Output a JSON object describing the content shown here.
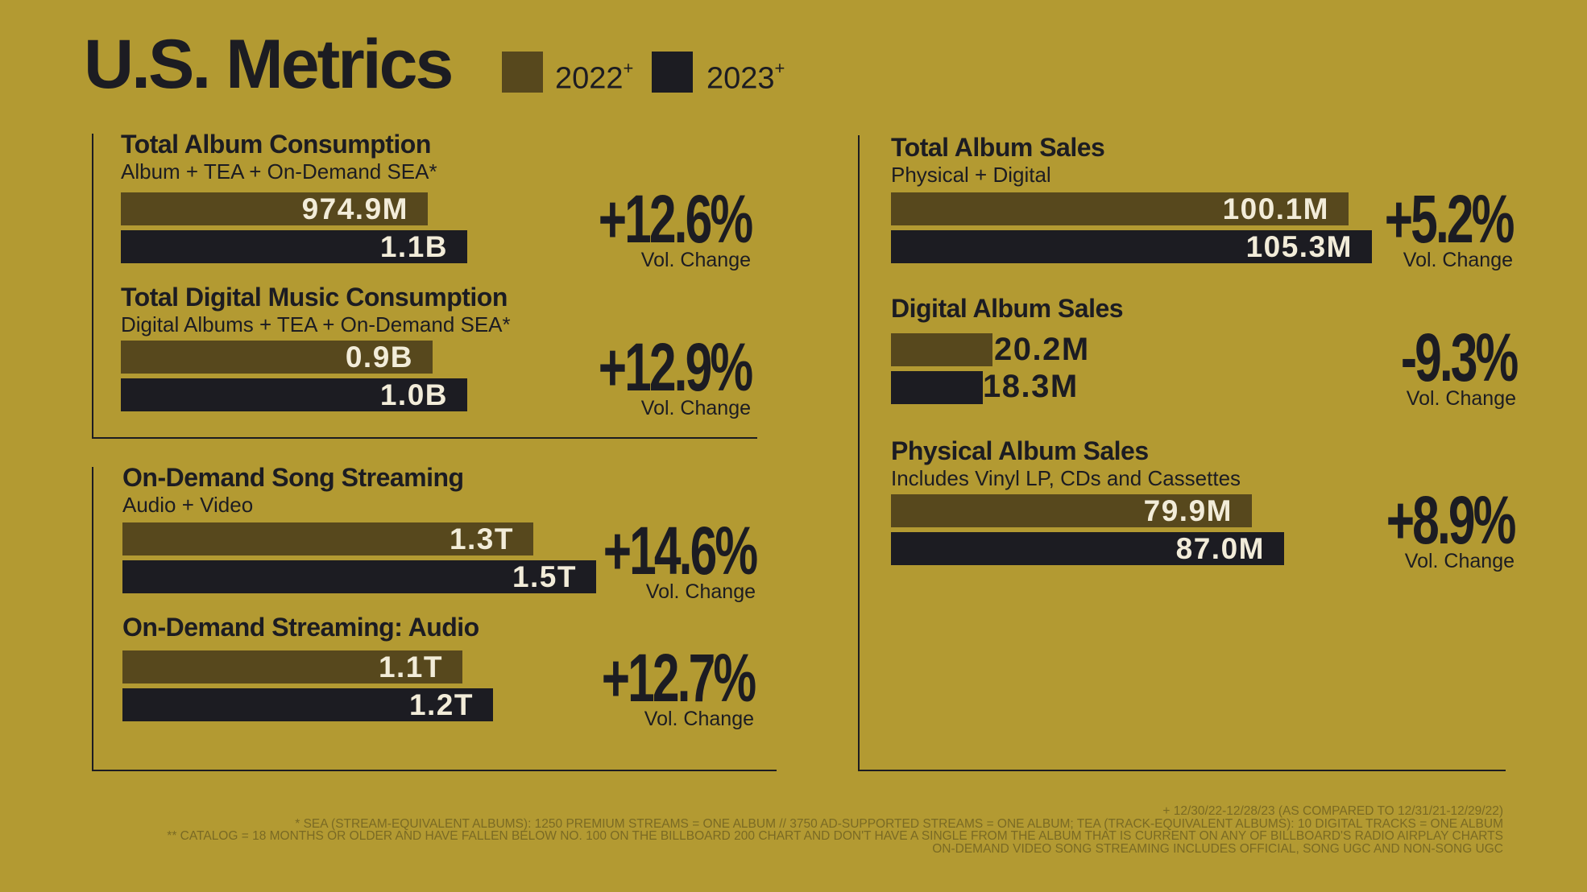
{
  "page": {
    "title": "U.S. Metrics",
    "legend": [
      {
        "label": "2022",
        "mark": "+",
        "color": "#57481d"
      },
      {
        "label": "2023",
        "mark": "+",
        "color": "#1c1c22"
      }
    ]
  },
  "colors": {
    "background": "#b39a32",
    "bar_2022": "#57481d",
    "bar_2023": "#1c1c22"
  },
  "chart_data": [
    {
      "type": "bar",
      "title": "Total Album Consumption",
      "subtitle": "Album + TEA + On-Demand SEA*",
      "categories": [
        "2022",
        "2023"
      ],
      "values": [
        974.9,
        1100
      ],
      "unit": "M",
      "value_labels": [
        "974.9M",
        "1.1B"
      ],
      "change": "+12.6%",
      "change_label": "Vol. Change"
    },
    {
      "type": "bar",
      "title": "Total Digital Music Consumption",
      "subtitle": "Digital Albums + TEA + On-Demand SEA*",
      "categories": [
        "2022",
        "2023"
      ],
      "values": [
        900,
        1000
      ],
      "unit": "M",
      "value_labels": [
        "0.9B",
        "1.0B"
      ],
      "change": "+12.9%",
      "change_label": "Vol. Change"
    },
    {
      "type": "bar",
      "title": "On-Demand Song Streaming",
      "subtitle": "Audio + Video",
      "categories": [
        "2022",
        "2023"
      ],
      "values": [
        1.3,
        1.5
      ],
      "unit": "T",
      "value_labels": [
        "1.3T",
        "1.5T"
      ],
      "change": "+14.6%",
      "change_label": "Vol. Change"
    },
    {
      "type": "bar",
      "title": "On-Demand Streaming: Audio",
      "subtitle": "",
      "categories": [
        "2022",
        "2023"
      ],
      "values": [
        1.1,
        1.2
      ],
      "unit": "T",
      "value_labels": [
        "1.1T",
        "1.2T"
      ],
      "change": "+12.7%",
      "change_label": "Vol. Change"
    },
    {
      "type": "bar",
      "title": "Total Album Sales",
      "subtitle": "Physical + Digital",
      "categories": [
        "2022",
        "2023"
      ],
      "values": [
        100.1,
        105.3
      ],
      "unit": "M",
      "value_labels": [
        "100.1M",
        "105.3M"
      ],
      "change": "+5.2%",
      "change_label": "Vol. Change"
    },
    {
      "type": "bar",
      "title": "Digital Album Sales",
      "subtitle": "",
      "categories": [
        "2022",
        "2023"
      ],
      "values": [
        20.2,
        18.3
      ],
      "unit": "M",
      "value_labels": [
        "20.2M",
        "18.3M"
      ],
      "change": "-9.3%",
      "change_label": "Vol. Change"
    },
    {
      "type": "bar",
      "title": "Physical Album Sales",
      "subtitle": "Includes Vinyl LP, CDs and Cassettes",
      "categories": [
        "2022",
        "2023"
      ],
      "values": [
        79.9,
        87.0
      ],
      "unit": "M",
      "value_labels": [
        "79.9M",
        "87.0M"
      ],
      "change": "+8.9%",
      "change_label": "Vol. Change"
    }
  ],
  "footnotes": [
    "+ 12/30/22-12/28/23 (AS COMPARED TO 12/31/21-12/29/22)",
    "* SEA (STREAM-EQUIVALENT ALBUMS): 1250 PREMIUM STREAMS = ONE ALBUM // 3750 AD-SUPPORTED STREAMS = ONE ALBUM; TEA (TRACK-EQUIVALENT ALBUMS): 10 DIGITAL TRACKS = ONE ALBUM",
    "** CATALOG = 18 MONTHS OR OLDER AND HAVE FALLEN BELOW NO. 100 ON THE BILLBOARD 200 CHART AND DON'T HAVE A SINGLE FROM THE ALBUM THAT IS CURRENT ON ANY OF BILLBOARD'S RADIO AIRPLAY CHARTS",
    "ON-DEMAND VIDEO SONG STREAMING INCLUDES OFFICIAL, SONG UGC AND NON-SONG UGC"
  ]
}
